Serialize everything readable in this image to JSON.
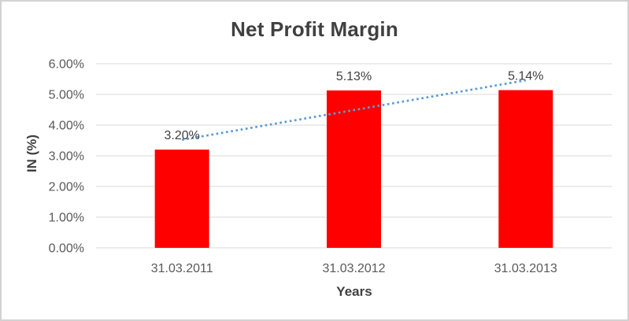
{
  "frame": {
    "background": "#ffffff",
    "border_color": "#d2d2d2"
  },
  "chart_data": {
    "type": "bar",
    "title": "Net Profit Margin",
    "xlabel": "Years",
    "ylabel": "IN (%)",
    "categories": [
      "31.03.2011",
      "31.03.2012",
      "31.03.2013"
    ],
    "values": [
      3.2,
      5.13,
      5.14
    ],
    "data_labels": [
      "3.20%",
      "5.13%",
      "5.14%"
    ],
    "ylim": [
      0,
      6
    ],
    "ytick_step": 1,
    "ytick_labels": [
      "0.00%",
      "1.00%",
      "2.00%",
      "3.00%",
      "4.00%",
      "5.00%",
      "6.00%"
    ],
    "grid": true,
    "legend": "none",
    "bar_color": "#FF0000",
    "trendline": {
      "type": "linear",
      "style": "dotted",
      "color": "#5B9BD5"
    },
    "colors": {
      "title": "#404040",
      "axis_title": "#404040",
      "tick_label": "#595959",
      "category_label": "#595959",
      "data_label": "#404040",
      "gridline": "#D9D9D9"
    }
  }
}
